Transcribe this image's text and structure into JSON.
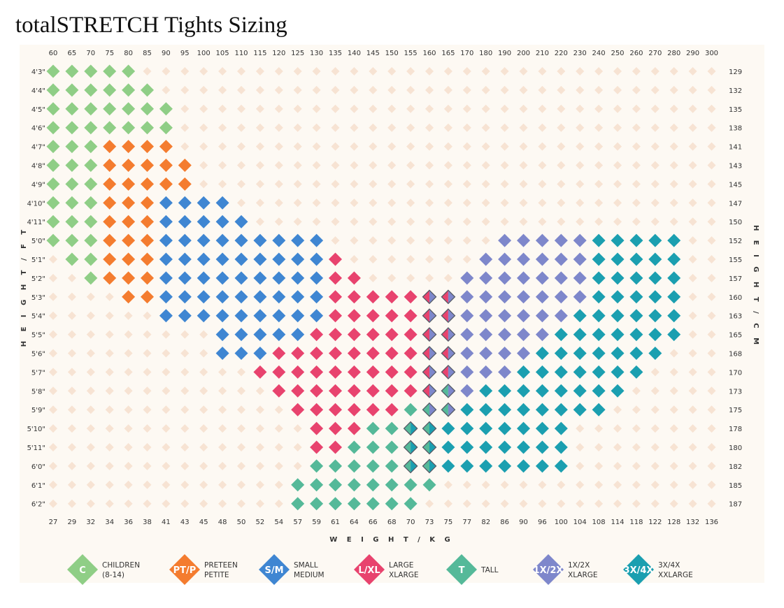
{
  "title": "totalSTRETCH Tights Sizing",
  "chart_data": {
    "type": "scatter",
    "title": "totalSTRETCH Tights Sizing",
    "xlabel": "W E I G H T / K G",
    "ylabel_left": "H E I G H T / F T",
    "ylabel_right": "H E I G H T / C M",
    "x_top_labels": [
      "60",
      "65",
      "70",
      "75",
      "80",
      "85",
      "90",
      "95",
      "100",
      "105",
      "110",
      "115",
      "120",
      "125",
      "130",
      "135",
      "140",
      "145",
      "150",
      "155",
      "160",
      "165",
      "170",
      "180",
      "190",
      "200",
      "210",
      "220",
      "230",
      "240",
      "250",
      "260",
      "270",
      "280",
      "290",
      "300"
    ],
    "x_bottom_labels": [
      "27",
      "29",
      "32",
      "34",
      "36",
      "38",
      "41",
      "43",
      "45",
      "48",
      "50",
      "52",
      "54",
      "57",
      "59",
      "61",
      "64",
      "66",
      "68",
      "70",
      "73",
      "75",
      "77",
      "82",
      "86",
      "90",
      "96",
      "100",
      "104",
      "108",
      "114",
      "118",
      "122",
      "128",
      "132",
      "136"
    ],
    "y_left_labels": [
      "4'3\"",
      "4'4\"",
      "4'5\"",
      "4'6\"",
      "4'7\"",
      "4'8\"",
      "4'9\"",
      "4'10\"",
      "4'11\"",
      "5'0\"",
      "5'1\"",
      "5'2\"",
      "5'3\"",
      "5'4\"",
      "5'5\"",
      "5'6\"",
      "5'7\"",
      "5'8\"",
      "5'9\"",
      "5'10\"",
      "5'11\"",
      "6'0\"",
      "6'1\"",
      "6'2\""
    ],
    "y_right_labels": [
      "129",
      "132",
      "135",
      "138",
      "141",
      "143",
      "145",
      "147",
      "150",
      "152",
      "155",
      "157",
      "160",
      "163",
      "165",
      "168",
      "170",
      "173",
      "175",
      "178",
      "180",
      "182",
      "185",
      "187"
    ],
    "sizes": [
      {
        "code": "C",
        "name_line1": "CHILDREN",
        "name_line2": "(8-14)",
        "color": "#8fce86"
      },
      {
        "code": "PT/P",
        "name_line1": "PRETEEN",
        "name_line2": "PETITE",
        "color": "#f47c2f"
      },
      {
        "code": "S/M",
        "name_line1": "SMALL",
        "name_line2": "MEDIUM",
        "color": "#3f86d2"
      },
      {
        "code": "L/XL",
        "name_line1": "LARGE",
        "name_line2": "XLARGE",
        "color": "#e8436e"
      },
      {
        "code": "T",
        "name_line1": "TALL",
        "name_line2": "",
        "color": "#55b999"
      },
      {
        "code": "1X/2X",
        "name_line1": "1X/2X",
        "name_line2": "XLARGE",
        "color": "#7e87cb"
      },
      {
        "code": "3X/4X",
        "name_line1": "3X/4X",
        "name_line2": "XXLARGE",
        "color": "#1b9fb0"
      }
    ],
    "empty_color": "#f7e3d3",
    "background_color": "#fdf9f3",
    "grid_rows": [
      "CCCCC...............................",
      "CCCCCC..............................",
      "CCCCCCC.............................",
      "CCCCCCC.............................",
      "CCCPPPP.............................",
      "CCCPPPPP............................",
      "CCCPPPPP............................",
      "CCCPPPSSSS..........................",
      "CCCPPPSSSSS.........................",
      "CCCPPPSSSSSSSSS.........XXXXXZZZZZ..",
      ".CCPPPSSSSSSSSSL.......XXXXXXZZZZZ..",
      "..CPPPSSSSSSSSSLL.....XXXXXXXZZZZZ..",
      "....PPSSSSSSSSSLLLLLBBXXXXXXXZZZZZ..",
      "......SSSSSSSSSLLLLLBBXXXXXXZZZZZZ..",
      ".........SSSSSLLLLLLBBXXXXXZZZZZZZ..",
      ".........SSSLLLLLLLLBBXXXXZZZZZZZ...",
      "...........LLLLLLLLLBBXXXZZZZZZZ....",
      "............LLLLLLLLBDXZZZZZZZZ.....",
      ".............LLLLLLTDDZZZZZZZZ......",
      "..............LLLTTEEZZZZZZZ........",
      "..............LLTTTEEZZZZZZZ........",
      "..............TTTTTEEZZZZZZZ........",
      ".............TTTTTTTT...............",
      ".............TTTTTTT................"
    ],
    "grid_legend": {
      ".": "none",
      "C": "C",
      "P": "PT/P",
      "S": "S/M",
      "L": "L/XL",
      "T": "T",
      "X": "1X/2X",
      "Z": "3X/4X",
      "B": "L/XL + 1X/2X",
      "D": "T + 1X/2X",
      "E": "T + 3X/4X"
    }
  }
}
